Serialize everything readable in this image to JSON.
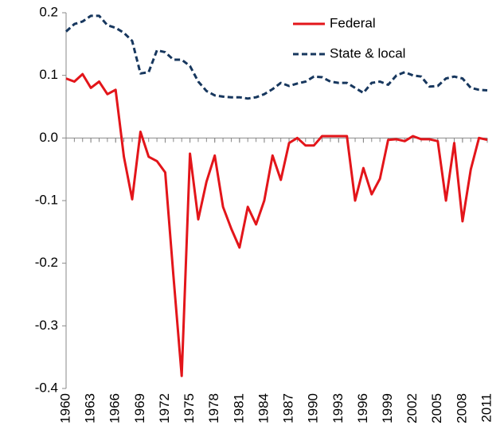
{
  "chart_data": {
    "type": "line",
    "x": [
      1960,
      1961,
      1962,
      1963,
      1964,
      1965,
      1966,
      1967,
      1968,
      1969,
      1970,
      1971,
      1972,
      1973,
      1974,
      1975,
      1976,
      1977,
      1978,
      1979,
      1980,
      1981,
      1982,
      1983,
      1984,
      1985,
      1986,
      1987,
      1988,
      1989,
      1990,
      1991,
      1992,
      1993,
      1994,
      1995,
      1996,
      1997,
      1998,
      1999,
      2000,
      2001,
      2002,
      2003,
      2004,
      2005,
      2006,
      2007,
      2008,
      2009,
      2010,
      2011
    ],
    "xlim": [
      1960,
      2011
    ],
    "xticks": [
      1960,
      1963,
      1966,
      1969,
      1972,
      1975,
      1978,
      1981,
      1984,
      1987,
      1990,
      1993,
      1996,
      1999,
      2002,
      2005,
      2008,
      2011
    ],
    "ylim": [
      -0.4,
      0.2
    ],
    "yticks": [
      0.2,
      0.1,
      {
        "value": 0,
        "label": "0.0"
      },
      -0.1,
      -0.2,
      -0.3,
      -0.4
    ],
    "legend": "upper right",
    "series": [
      {
        "name": "Federal",
        "color": "#e3151a",
        "dash": "solid",
        "values": [
          0.095,
          0.09,
          0.102,
          0.08,
          0.09,
          0.07,
          0.077,
          -0.03,
          -0.098,
          0.01,
          -0.03,
          -0.037,
          -0.055,
          -0.22,
          -0.38,
          -0.025,
          -0.13,
          -0.07,
          -0.028,
          -0.11,
          -0.145,
          -0.175,
          -0.11,
          -0.138,
          -0.1,
          -0.028,
          -0.067,
          -0.008,
          0.0,
          -0.012,
          -0.012,
          0.003,
          0.003,
          0.003,
          0.003,
          -0.1,
          -0.048,
          -0.09,
          -0.065,
          -0.003,
          -0.002,
          -0.005,
          0.003,
          -0.002,
          -0.002,
          -0.005,
          -0.1,
          -0.008,
          -0.133,
          -0.05,
          0.0,
          -0.003
        ]
      },
      {
        "name": "State & local",
        "color": "#17375e",
        "dash": "dashed",
        "values": [
          0.17,
          0.182,
          0.186,
          0.195,
          0.195,
          0.18,
          0.176,
          0.168,
          0.155,
          0.103,
          0.105,
          0.14,
          0.137,
          0.125,
          0.125,
          0.115,
          0.09,
          0.075,
          0.068,
          0.066,
          0.065,
          0.065,
          0.063,
          0.065,
          0.07,
          0.078,
          0.088,
          0.083,
          0.087,
          0.09,
          0.098,
          0.097,
          0.09,
          0.088,
          0.088,
          0.08,
          0.072,
          0.088,
          0.09,
          0.085,
          0.1,
          0.105,
          0.1,
          0.098,
          0.082,
          0.083,
          0.095,
          0.098,
          0.095,
          0.08,
          0.077,
          0.076
        ]
      }
    ]
  }
}
